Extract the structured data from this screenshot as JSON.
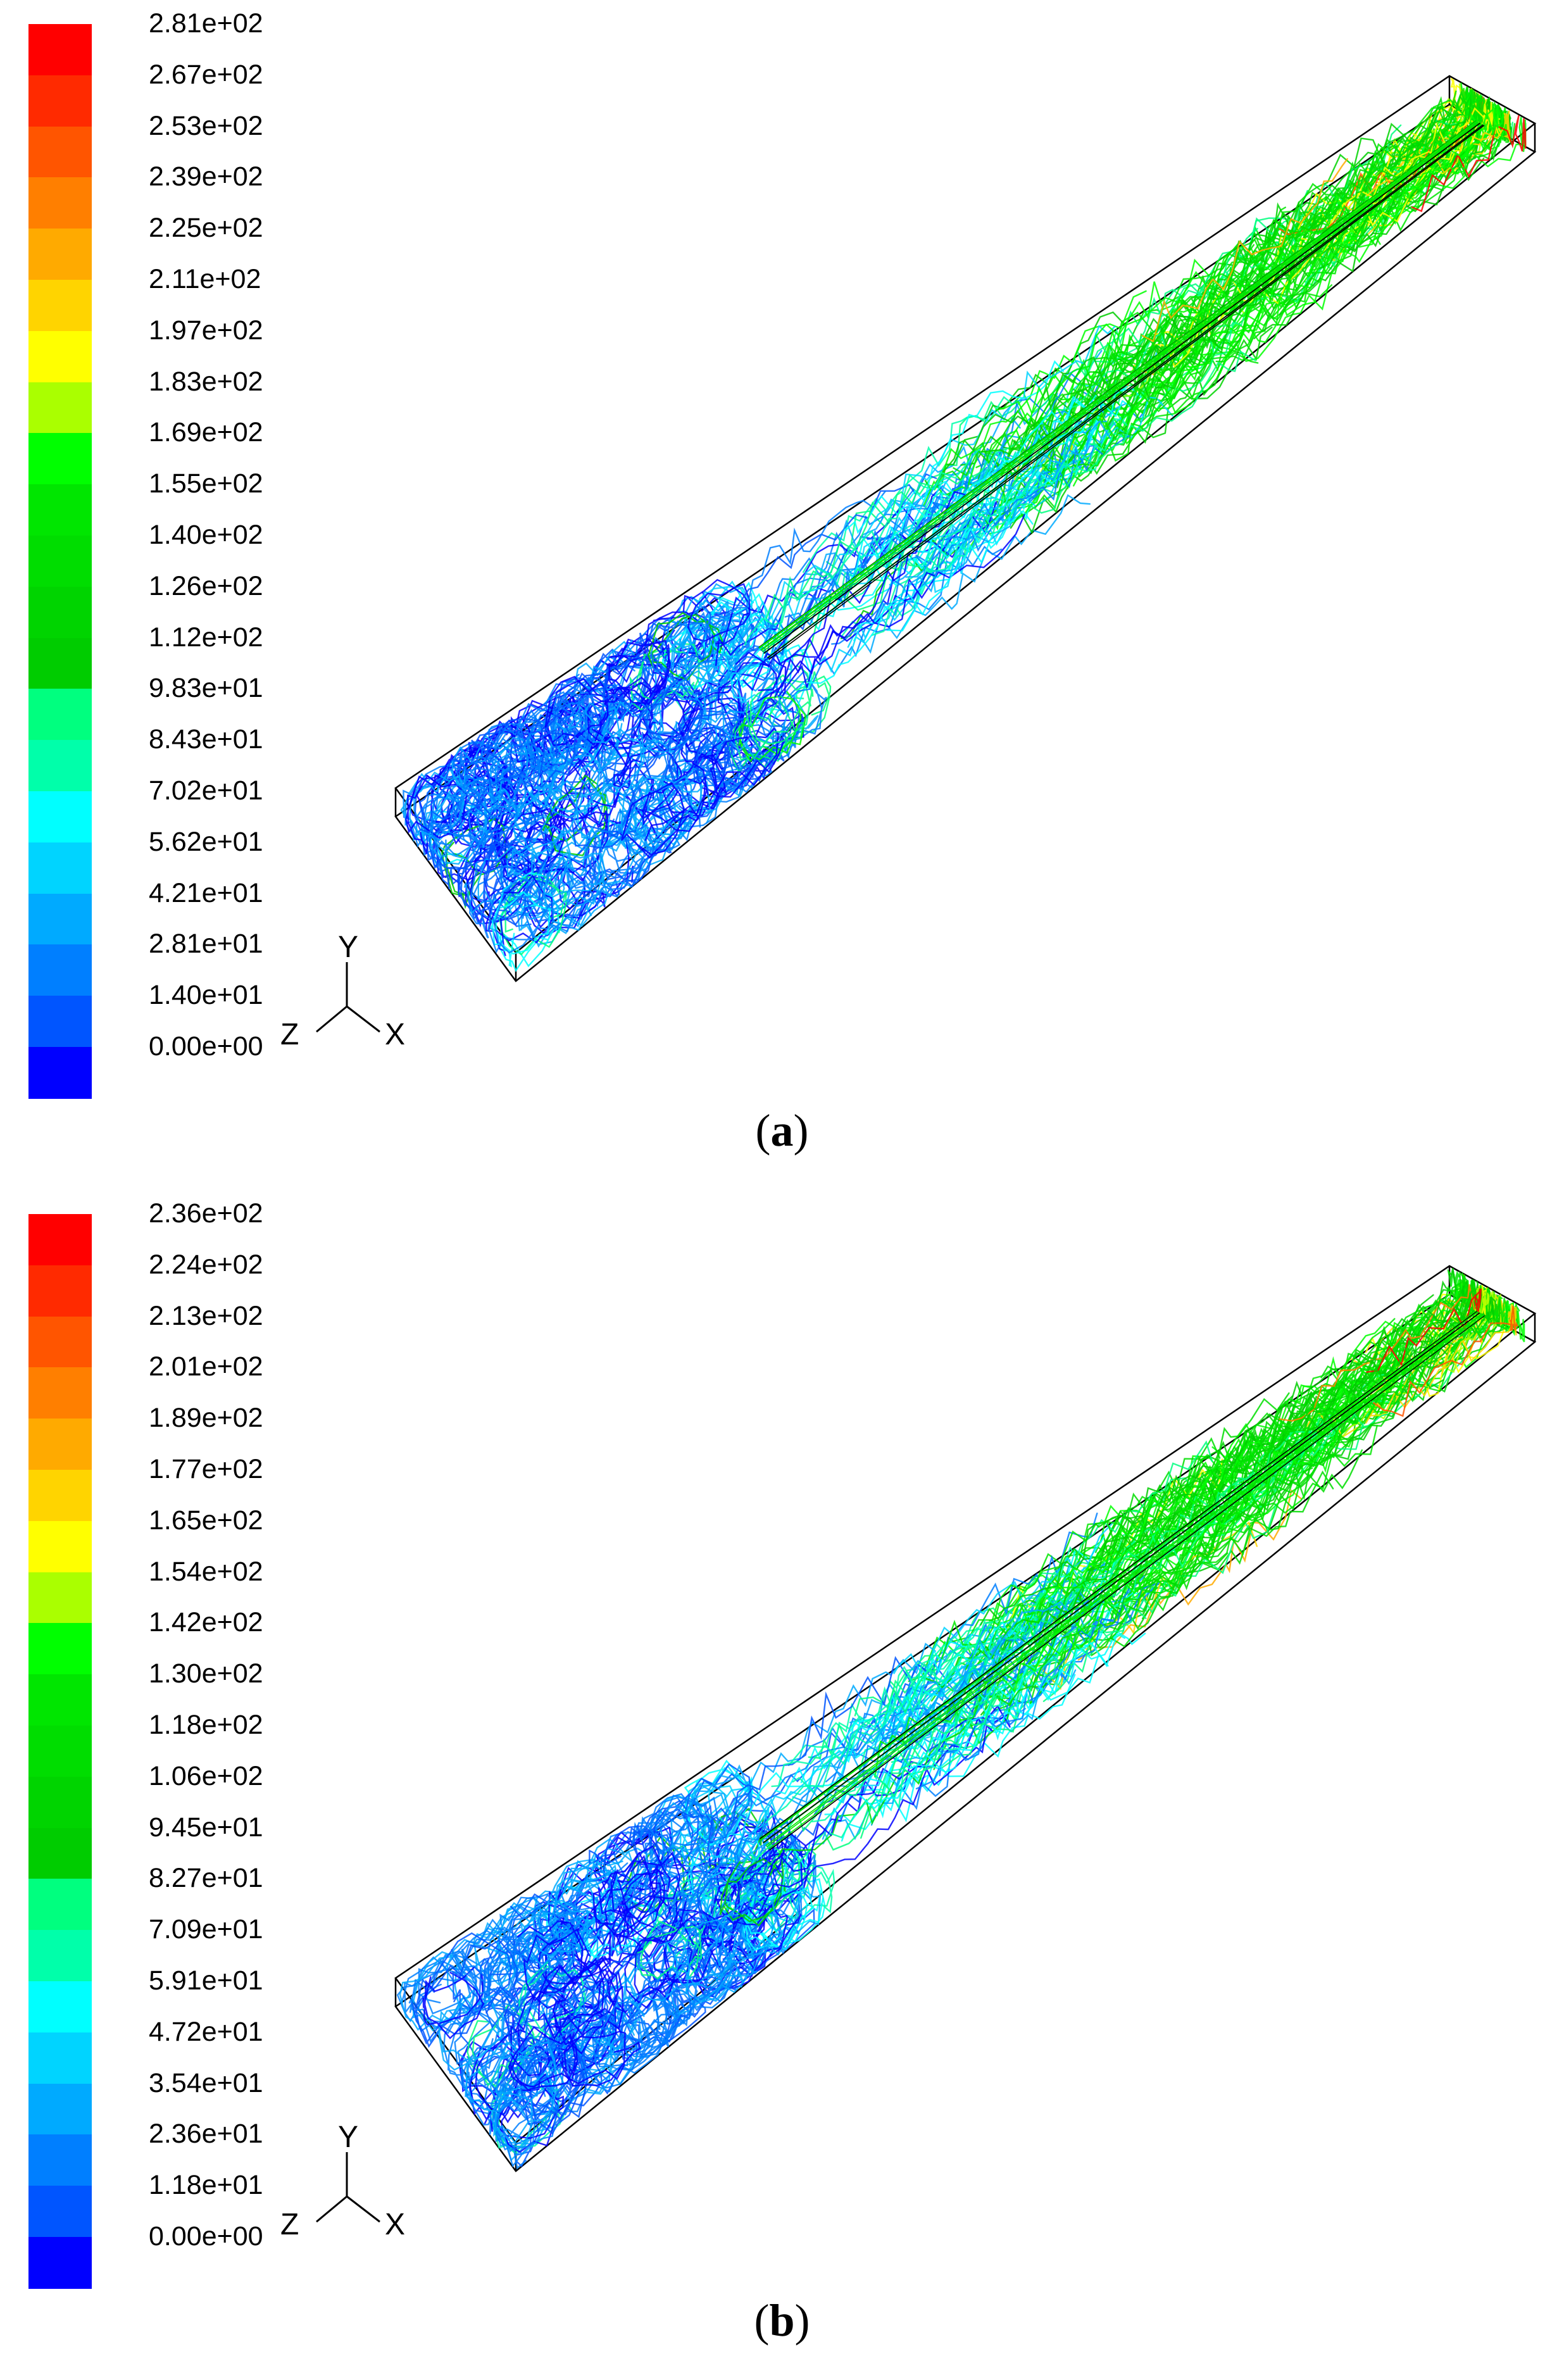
{
  "panels": [
    {
      "id": "a",
      "caption_letter": "a",
      "legend": [
        "2.81e+02",
        "2.67e+02",
        "2.53e+02",
        "2.39e+02",
        "2.25e+02",
        "2.11e+02",
        "1.97e+02",
        "1.83e+02",
        "1.69e+02",
        "1.55e+02",
        "1.40e+02",
        "1.26e+02",
        "1.12e+02",
        "9.83e+01",
        "8.43e+01",
        "7.02e+01",
        "5.62e+01",
        "4.21e+01",
        "2.81e+01",
        "1.40e+01",
        "0.00e+00"
      ],
      "axes": {
        "y": "Y",
        "z": "Z",
        "x": "X"
      }
    },
    {
      "id": "b",
      "caption_letter": "b",
      "legend": [
        "2.36e+02",
        "2.24e+02",
        "2.13e+02",
        "2.01e+02",
        "1.89e+02",
        "1.77e+02",
        "1.65e+02",
        "1.54e+02",
        "1.42e+02",
        "1.30e+02",
        "1.18e+02",
        "1.06e+02",
        "9.45e+01",
        "8.27e+01",
        "7.09e+01",
        "5.91e+01",
        "4.72e+01",
        "3.54e+01",
        "2.36e+01",
        "1.18e+01",
        "0.00e+00"
      ],
      "axes": {
        "y": "Y",
        "z": "Z",
        "x": "X"
      }
    }
  ],
  "colormap": [
    "#ff0000",
    "#ff2a00",
    "#ff5500",
    "#ff7f00",
    "#ffaa00",
    "#ffd400",
    "#ffff00",
    "#aaff00",
    "#00ff00",
    "#00e600",
    "#00dd00",
    "#00d400",
    "#00cc00",
    "#00ff7f",
    "#00ffaa",
    "#00ffff",
    "#00d4ff",
    "#00aaff",
    "#007fff",
    "#0055ff",
    "#0000ff"
  ]
}
